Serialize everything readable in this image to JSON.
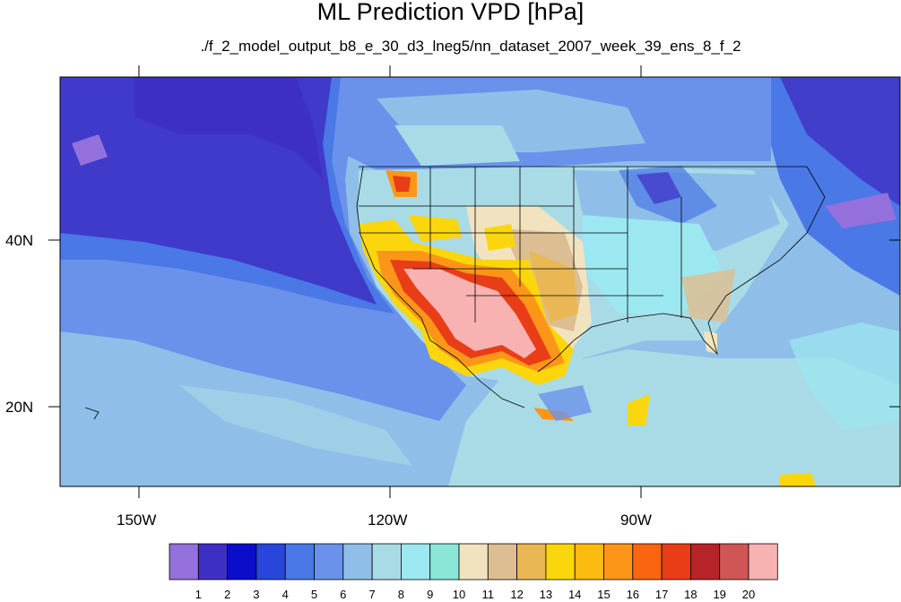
{
  "title": "ML Prediction VPD [hPa]",
  "subtitle": "./f_2_model_output_b8_e_30_d3_lneg5/nn_dataset_2007_week_39_ens_8_f_2",
  "axes": {
    "lon_labels": [
      "150W",
      "120W",
      "90W"
    ],
    "lat_labels": [
      "40N",
      "20N"
    ]
  },
  "colorbar": {
    "labels": [
      "1",
      "2",
      "3",
      "4",
      "5",
      "6",
      "7",
      "8",
      "9",
      "10",
      "11",
      "12",
      "13",
      "14",
      "15",
      "16",
      "17",
      "18",
      "19",
      "20"
    ],
    "colors": [
      "#9370db",
      "#3e2fc4",
      "#0a0ec8",
      "#2846dc",
      "#4a78e6",
      "#6a92ea",
      "#8fbfe8",
      "#a8dbe6",
      "#9be8f0",
      "#8ae6d6",
      "#f2e3c0",
      "#dcbe92",
      "#e9b855",
      "#fcd60c",
      "#fdba10",
      "#fc9619",
      "#fb6510",
      "#e83d17",
      "#b8232a",
      "#d05656",
      "#f9b2b2"
    ]
  },
  "map": {
    "region": "North America, eastern Pacific, Gulf of Mexico",
    "lon_range": [
      -160,
      -60
    ],
    "lat_range": [
      10,
      59
    ]
  }
}
